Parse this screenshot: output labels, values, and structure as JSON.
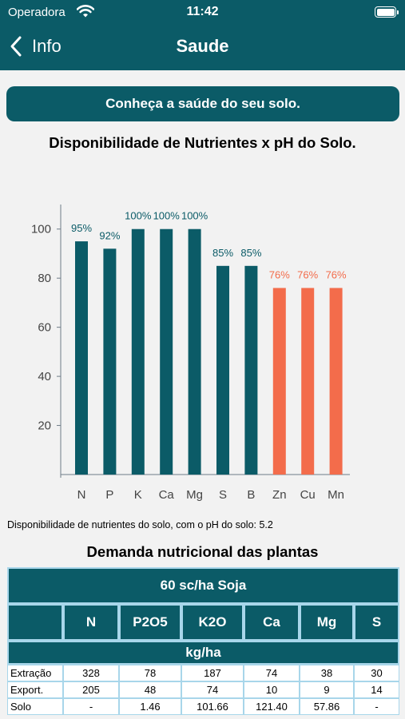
{
  "status_bar": {
    "carrier": "Operadora",
    "time": "11:42"
  },
  "nav": {
    "back_label": "Info",
    "title": "Saude"
  },
  "banner": {
    "text": "Conheça a saúde do seu solo."
  },
  "chart_title": "Disponibilidade de Nutrientes x pH do Solo.",
  "chart_data": {
    "type": "bar",
    "categories": [
      "N",
      "P",
      "K",
      "Ca",
      "Mg",
      "S",
      "B",
      "Zn",
      "Cu",
      "Mn"
    ],
    "values": [
      95,
      92,
      100,
      100,
      100,
      85,
      85,
      76,
      76,
      76
    ],
    "data_labels": [
      "95%",
      "92%",
      "100%",
      "100%",
      "100%",
      "85%",
      "85%",
      "76%",
      "76%",
      "76%"
    ],
    "y_ticks": [
      20,
      40,
      60,
      80,
      100
    ],
    "ylim": [
      0,
      110
    ],
    "colors": [
      "#0b5b67",
      "#0b5b67",
      "#0b5b67",
      "#0b5b67",
      "#0b5b67",
      "#0b5b67",
      "#0b5b67",
      "#f36c4b",
      "#f36c4b",
      "#f36c4b"
    ],
    "label_colors": [
      "#0b5b67",
      "#0b5b67",
      "#0b5b67",
      "#0b5b67",
      "#0b5b67",
      "#0b5b67",
      "#0b5b67",
      "#f36c4b",
      "#f36c4b",
      "#f36c4b"
    ],
    "grid": false
  },
  "chart_caption": "Disponibilidade de nutrientes do solo, com o pH do solo: 5.2",
  "demand": {
    "title": "Demanda nutricional das plantas",
    "table_title": "60 sc/ha Soja",
    "columns": [
      "",
      "N",
      "P2O5",
      "K2O",
      "Ca",
      "Mg",
      "S"
    ],
    "unit": "kg/ha",
    "rows": [
      {
        "label": "Extração",
        "values": [
          "328",
          "78",
          "187",
          "74",
          "38",
          "30"
        ]
      },
      {
        "label": "Export.",
        "values": [
          "205",
          "48",
          "74",
          "10",
          "9",
          "14"
        ]
      },
      {
        "label": "Solo",
        "values": [
          "-",
          "1.46",
          "101.66",
          "121.40",
          "57.86",
          "-"
        ]
      }
    ]
  },
  "colors": {
    "primary": "#0b5b67",
    "accent": "#f36c4b",
    "border": "#a8d6ea"
  }
}
